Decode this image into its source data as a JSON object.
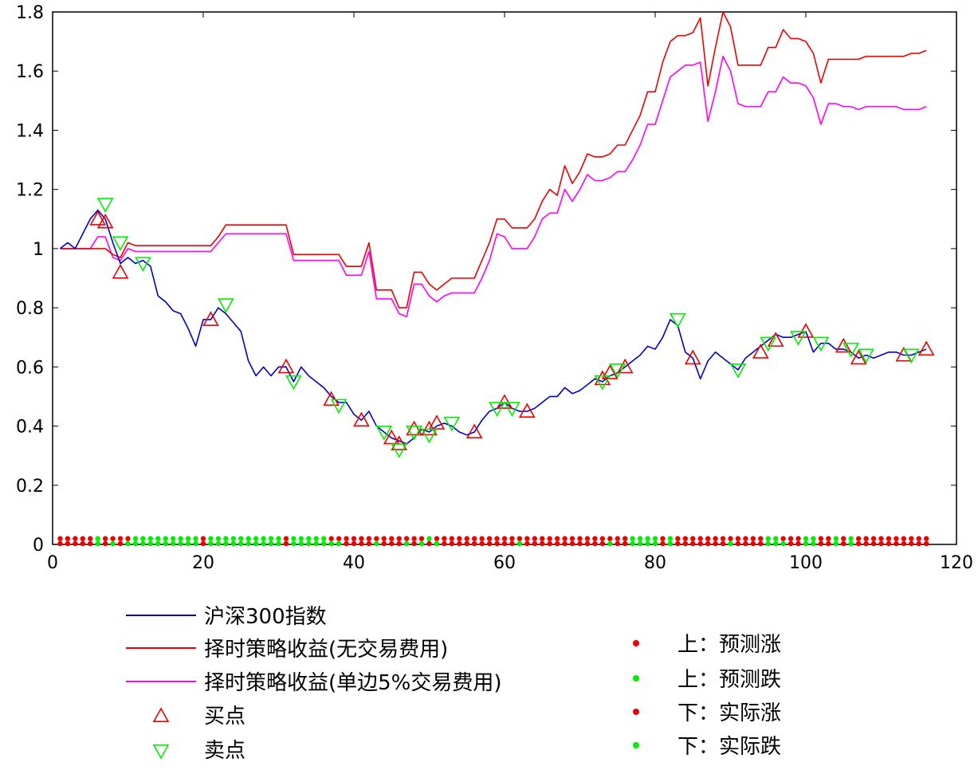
{
  "colors": {
    "index": "#0000cc",
    "strategy_no_fee": "#ee0000",
    "strategy_fee": "#ff00ff",
    "buy": "#ee0000",
    "sell": "#00ee00",
    "up": "#ee0000",
    "down": "#00ee00"
  },
  "chart_data": {
    "type": "line",
    "title": "",
    "xlabel": "",
    "ylabel": "",
    "xlim": [
      0,
      120
    ],
    "ylim": [
      0,
      1.8
    ],
    "xticks": [
      "0",
      "20",
      "40",
      "60",
      "80",
      "100",
      "120"
    ],
    "yticks": [
      "0",
      "0.2",
      "0.4",
      "0.6",
      "0.8",
      "1",
      "1.2",
      "1.4",
      "1.6",
      "1.8"
    ],
    "grid": false,
    "legend_position": "bottom",
    "series": [
      {
        "name": "沪深300指数",
        "x": [
          0,
          1,
          2,
          3,
          4,
          5,
          6,
          7,
          8,
          9,
          10,
          11,
          12,
          13,
          14,
          15,
          16,
          17,
          18,
          19,
          20,
          21,
          22,
          23,
          24,
          25,
          26,
          27,
          28,
          29,
          30,
          31,
          32,
          33,
          34,
          35,
          36,
          37,
          38,
          39,
          40,
          41,
          42,
          43,
          44,
          45,
          46,
          47,
          48,
          49,
          50,
          51,
          52,
          53,
          54,
          55,
          56,
          57,
          58,
          59,
          60,
          61,
          62,
          63,
          64,
          65,
          66,
          67,
          68,
          69,
          70,
          71,
          72,
          73,
          74,
          75,
          76,
          77,
          78,
          79,
          80,
          81,
          82,
          83,
          84,
          85,
          86,
          87,
          88,
          89,
          90,
          91,
          92,
          93,
          94,
          95,
          96,
          97,
          98,
          99,
          100,
          101,
          102,
          103,
          104,
          105,
          106,
          107,
          108,
          109,
          110,
          111,
          112,
          113,
          114,
          115
        ],
        "values": [
          1.0,
          1.02,
          1.0,
          1.05,
          1.1,
          1.13,
          1.1,
          1.02,
          0.95,
          0.97,
          0.95,
          0.96,
          0.94,
          0.84,
          0.82,
          0.79,
          0.78,
          0.73,
          0.67,
          0.76,
          0.76,
          0.8,
          0.78,
          0.75,
          0.72,
          0.62,
          0.57,
          0.6,
          0.57,
          0.6,
          0.6,
          0.55,
          0.6,
          0.57,
          0.55,
          0.53,
          0.5,
          0.48,
          0.48,
          0.44,
          0.42,
          0.45,
          0.4,
          0.38,
          0.36,
          0.35,
          0.34,
          0.36,
          0.39,
          0.38,
          0.4,
          0.41,
          0.4,
          0.38,
          0.37,
          0.38,
          0.42,
          0.45,
          0.46,
          0.48,
          0.46,
          0.45,
          0.45,
          0.46,
          0.48,
          0.5,
          0.5,
          0.53,
          0.51,
          0.52,
          0.54,
          0.56,
          0.55,
          0.57,
          0.58,
          0.6,
          0.62,
          0.64,
          0.67,
          0.66,
          0.7,
          0.76,
          0.74,
          0.65,
          0.63,
          0.56,
          0.62,
          0.65,
          0.63,
          0.61,
          0.59,
          0.63,
          0.65,
          0.67,
          0.69,
          0.71,
          0.7,
          0.7,
          0.71,
          0.72,
          0.65,
          0.68,
          0.68,
          0.66,
          0.66,
          0.65,
          0.63,
          0.64,
          0.63,
          0.64,
          0.65,
          0.65,
          0.64,
          0.64,
          0.65,
          0.66
        ]
      },
      {
        "name": "择时策略收益(无交易费用)",
        "x": [
          0,
          1,
          2,
          3,
          4,
          5,
          6,
          7,
          8,
          9,
          10,
          11,
          12,
          13,
          14,
          15,
          16,
          17,
          18,
          19,
          20,
          21,
          22,
          23,
          24,
          25,
          26,
          27,
          28,
          29,
          30,
          31,
          32,
          33,
          34,
          35,
          36,
          37,
          38,
          39,
          40,
          41,
          42,
          43,
          44,
          45,
          46,
          47,
          48,
          49,
          50,
          51,
          52,
          53,
          54,
          55,
          56,
          57,
          58,
          59,
          60,
          61,
          62,
          63,
          64,
          65,
          66,
          67,
          68,
          69,
          70,
          71,
          72,
          73,
          74,
          75,
          76,
          77,
          78,
          79,
          80,
          81,
          82,
          83,
          84,
          85,
          86,
          87,
          88,
          89,
          90,
          91,
          92,
          93,
          94,
          95,
          96,
          97,
          98,
          99,
          100,
          101,
          102,
          103,
          104,
          105,
          106,
          107,
          108,
          109,
          110,
          111,
          112,
          113,
          114,
          115
        ],
        "values": [
          1.0,
          1.0,
          1.0,
          1.0,
          1.0,
          1.0,
          1.0,
          0.98,
          0.97,
          1.02,
          1.01,
          1.01,
          1.01,
          1.01,
          1.01,
          1.01,
          1.01,
          1.01,
          1.01,
          1.01,
          1.01,
          1.04,
          1.08,
          1.08,
          1.08,
          1.08,
          1.08,
          1.08,
          1.08,
          1.08,
          1.08,
          0.98,
          0.98,
          0.98,
          0.98,
          0.98,
          0.98,
          0.98,
          0.94,
          0.94,
          0.94,
          1.02,
          0.86,
          0.86,
          0.86,
          0.8,
          0.8,
          0.92,
          0.92,
          0.88,
          0.86,
          0.88,
          0.9,
          0.9,
          0.9,
          0.9,
          0.96,
          1.02,
          1.1,
          1.1,
          1.07,
          1.07,
          1.07,
          1.1,
          1.16,
          1.2,
          1.18,
          1.28,
          1.22,
          1.26,
          1.32,
          1.31,
          1.31,
          1.32,
          1.35,
          1.35,
          1.4,
          1.45,
          1.53,
          1.53,
          1.63,
          1.7,
          1.72,
          1.72,
          1.73,
          1.78,
          1.55,
          1.68,
          1.8,
          1.75,
          1.62,
          1.62,
          1.62,
          1.62,
          1.68,
          1.68,
          1.74,
          1.71,
          1.71,
          1.7,
          1.66,
          1.56,
          1.64,
          1.64,
          1.64,
          1.64,
          1.64,
          1.65,
          1.65,
          1.65,
          1.65,
          1.65,
          1.65,
          1.66,
          1.66,
          1.67
        ]
      },
      {
        "name": "择时策略收益(单边5%交易费用)",
        "x": [
          0,
          1,
          2,
          3,
          4,
          5,
          6,
          7,
          8,
          9,
          10,
          11,
          12,
          13,
          14,
          15,
          16,
          17,
          18,
          19,
          20,
          21,
          22,
          23,
          24,
          25,
          26,
          27,
          28,
          29,
          30,
          31,
          32,
          33,
          34,
          35,
          36,
          37,
          38,
          39,
          40,
          41,
          42,
          43,
          44,
          45,
          46,
          47,
          48,
          49,
          50,
          51,
          52,
          53,
          54,
          55,
          56,
          57,
          58,
          59,
          60,
          61,
          62,
          63,
          64,
          65,
          66,
          67,
          68,
          69,
          70,
          71,
          72,
          73,
          74,
          75,
          76,
          77,
          78,
          79,
          80,
          81,
          82,
          83,
          84,
          85,
          86,
          87,
          88,
          89,
          90,
          91,
          92,
          93,
          94,
          95,
          96,
          97,
          98,
          99,
          100,
          101,
          102,
          103,
          104,
          105,
          106,
          107,
          108,
          109,
          110,
          111,
          112,
          113,
          114,
          115
        ],
        "values": [
          1.0,
          1.0,
          1.0,
          1.0,
          1.0,
          1.04,
          1.04,
          0.97,
          0.96,
          1.0,
          0.99,
          0.99,
          0.99,
          0.99,
          0.99,
          0.99,
          0.99,
          0.99,
          0.99,
          0.99,
          0.99,
          1.02,
          1.05,
          1.05,
          1.05,
          1.05,
          1.05,
          1.05,
          1.05,
          1.05,
          1.05,
          0.96,
          0.96,
          0.96,
          0.96,
          0.96,
          0.96,
          0.96,
          0.91,
          0.91,
          0.91,
          0.99,
          0.83,
          0.83,
          0.83,
          0.78,
          0.77,
          0.88,
          0.88,
          0.84,
          0.82,
          0.84,
          0.85,
          0.85,
          0.85,
          0.85,
          0.9,
          0.96,
          1.05,
          1.04,
          1.0,
          1.0,
          1.0,
          1.04,
          1.1,
          1.12,
          1.12,
          1.2,
          1.16,
          1.2,
          1.25,
          1.23,
          1.23,
          1.24,
          1.26,
          1.26,
          1.3,
          1.35,
          1.42,
          1.42,
          1.5,
          1.58,
          1.6,
          1.62,
          1.62,
          1.63,
          1.43,
          1.53,
          1.65,
          1.6,
          1.49,
          1.48,
          1.48,
          1.48,
          1.53,
          1.53,
          1.58,
          1.56,
          1.56,
          1.55,
          1.51,
          1.42,
          1.49,
          1.49,
          1.48,
          1.48,
          1.47,
          1.48,
          1.48,
          1.48,
          1.48,
          1.48,
          1.47,
          1.47,
          1.47,
          1.48
        ]
      }
    ],
    "buy_points": {
      "name": "买点",
      "x": [
        5,
        6,
        8,
        20,
        30,
        36,
        40,
        44,
        45,
        47,
        49,
        50,
        55,
        59,
        62,
        72,
        73,
        75,
        84,
        93,
        95,
        99,
        104,
        106,
        112,
        115
      ],
      "y": [
        1.1,
        1.09,
        0.92,
        0.76,
        0.6,
        0.49,
        0.42,
        0.36,
        0.34,
        0.39,
        0.39,
        0.41,
        0.38,
        0.48,
        0.45,
        0.56,
        0.58,
        0.6,
        0.63,
        0.65,
        0.69,
        0.72,
        0.67,
        0.63,
        0.64,
        0.66
      ]
    },
    "sell_points": {
      "name": "卖点",
      "x": [
        6,
        8,
        11,
        22,
        31,
        37,
        43,
        45,
        47,
        49,
        52,
        58,
        60,
        72,
        74,
        82,
        90,
        94,
        98,
        101,
        105,
        107,
        113
      ],
      "y": [
        1.15,
        1.02,
        0.95,
        0.81,
        0.55,
        0.47,
        0.38,
        0.32,
        0.38,
        0.37,
        0.41,
        0.46,
        0.46,
        0.55,
        0.59,
        0.76,
        0.59,
        0.68,
        0.7,
        0.68,
        0.66,
        0.64,
        0.64
      ]
    },
    "upper_dots": {
      "name": "上：预测涨",
      "name_down": "上：预测跌",
      "y": 0.025,
      "pattern": [
        1,
        1,
        1,
        1,
        1,
        0,
        1,
        1,
        1,
        1,
        0,
        0,
        0,
        0,
        0,
        0,
        0,
        0,
        0,
        1,
        0,
        0,
        0,
        0,
        0,
        0,
        0,
        0,
        0,
        0,
        1,
        0,
        0,
        0,
        0,
        0,
        1,
        1,
        1,
        1,
        1,
        1,
        1,
        1,
        1,
        1,
        1,
        1,
        1,
        0,
        1,
        1,
        1,
        1,
        1,
        1,
        1,
        1,
        1,
        1,
        1,
        1,
        1,
        1,
        1,
        1,
        1,
        1,
        1,
        1,
        1,
        1,
        1,
        1,
        1,
        1,
        0,
        0,
        0,
        0,
        1,
        0,
        1,
        1,
        1,
        1,
        1,
        1,
        1,
        1,
        1,
        1,
        1,
        1,
        0,
        0,
        1,
        1,
        1,
        0,
        0,
        1,
        1,
        0,
        1,
        0,
        1,
        1,
        1,
        1,
        1,
        1,
        1,
        1,
        1,
        1
      ]
    },
    "lower_dots": {
      "name": "下：实际涨",
      "name_down": "下：实际跌",
      "y": 0.0,
      "pattern": [
        1,
        1,
        1,
        1,
        1,
        0,
        1,
        0,
        1,
        0,
        0,
        0,
        0,
        0,
        0,
        0,
        0,
        0,
        0,
        1,
        0,
        0,
        0,
        0,
        0,
        0,
        0,
        0,
        0,
        0,
        1,
        0,
        0,
        0,
        0,
        0,
        0,
        0,
        1,
        1,
        1,
        1,
        0,
        1,
        1,
        1,
        0,
        1,
        0,
        1,
        0,
        1,
        1,
        1,
        1,
        1,
        1,
        1,
        1,
        1,
        1,
        0,
        1,
        1,
        1,
        1,
        1,
        1,
        1,
        1,
        1,
        1,
        1,
        0,
        1,
        1,
        0,
        0,
        0,
        0,
        1,
        0,
        1,
        1,
        1,
        1,
        1,
        1,
        1,
        0,
        1,
        1,
        1,
        1,
        0,
        0,
        0,
        1,
        1,
        0,
        0,
        1,
        1,
        0,
        1,
        0,
        1,
        1,
        1,
        1,
        1,
        1,
        1,
        1,
        1,
        1
      ]
    }
  }
}
